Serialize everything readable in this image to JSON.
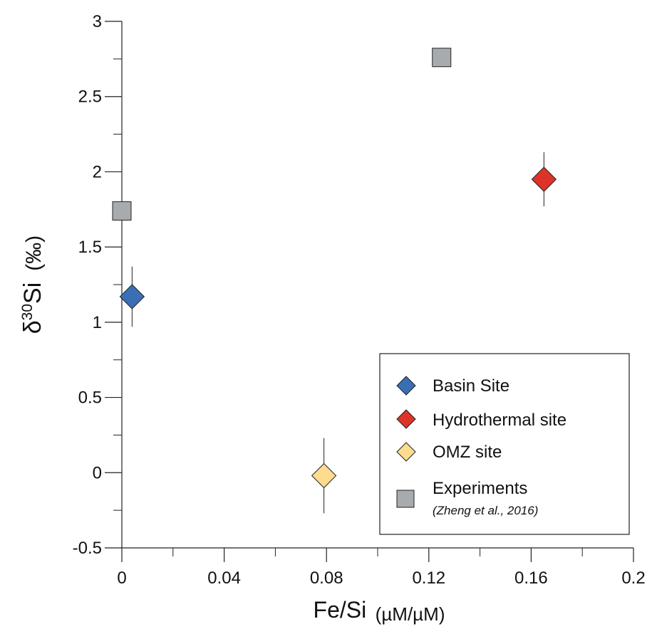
{
  "chart_data": {
    "type": "scatter",
    "title": "",
    "xlabel": "Fe/Si",
    "xlabel_unit": "(µM/µM)",
    "ylabel": "δ³⁰Si",
    "ylabel_prefix": "δ",
    "ylabel_sup": "30",
    "ylabel_main": "Si",
    "ylabel_unit": "(‰)",
    "xlim": [
      0,
      0.2
    ],
    "ylim": [
      -0.5,
      3
    ],
    "x_ticks": [
      0,
      0.04,
      0.08,
      0.12,
      0.16,
      0.2
    ],
    "x_tick_labels": [
      "0",
      "0.04",
      "0.08",
      "0.12",
      "0.16",
      "0.2"
    ],
    "y_ticks": [
      -0.5,
      0,
      0.5,
      1,
      1.5,
      2,
      2.5,
      3
    ],
    "y_tick_labels": [
      "-0.5",
      "0",
      "0.5",
      "1",
      "1.5",
      "2",
      "2.5",
      "3"
    ],
    "grid": false,
    "legend_position": "bottom-right",
    "series": [
      {
        "name": "Basin Site",
        "marker": "diamond",
        "color": "#3a6fb5",
        "points": [
          {
            "x": 0.004,
            "y": 1.17,
            "yerr": 0.2
          }
        ]
      },
      {
        "name": "Hydrothermal site",
        "marker": "diamond",
        "color": "#dd3328",
        "points": [
          {
            "x": 0.165,
            "y": 1.95,
            "yerr": 0.18
          }
        ]
      },
      {
        "name": "OMZ site",
        "marker": "diamond",
        "color": "#fddb8f",
        "points": [
          {
            "x": 0.079,
            "y": -0.02,
            "yerr": 0.25
          }
        ]
      },
      {
        "name": "Experiments",
        "note": "(Zheng et al., 2016)",
        "marker": "square",
        "color": "#a8abad",
        "points": [
          {
            "x": 0.0,
            "y": 1.74
          },
          {
            "x": 0.125,
            "y": 2.76
          }
        ]
      }
    ]
  }
}
